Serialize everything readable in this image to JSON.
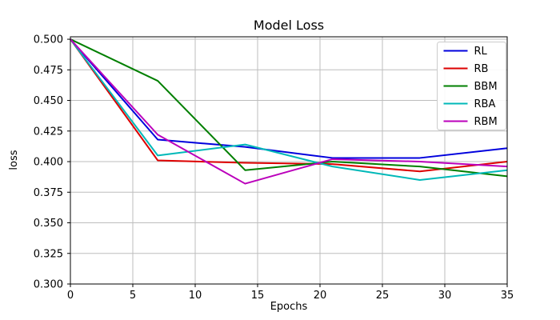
{
  "chart_data": {
    "type": "line",
    "title": "Model Loss",
    "xlabel": "Epochs",
    "ylabel": "loss",
    "x": [
      0,
      7,
      14,
      21,
      28,
      35
    ],
    "series": [
      {
        "name": "RL",
        "color": "#0000dd",
        "values": [
          0.5,
          0.418,
          0.412,
          0.403,
          0.403,
          0.411
        ]
      },
      {
        "name": "RB",
        "color": "#dd0000",
        "values": [
          0.5,
          0.401,
          0.399,
          0.398,
          0.392,
          0.4
        ]
      },
      {
        "name": "BBM",
        "color": "#007f00",
        "values": [
          0.5,
          0.466,
          0.393,
          0.4,
          0.396,
          0.388
        ]
      },
      {
        "name": "RBA",
        "color": "#00b8b8",
        "values": [
          0.5,
          0.405,
          0.414,
          0.396,
          0.385,
          0.393
        ]
      },
      {
        "name": "RBM",
        "color": "#bb00bb",
        "values": [
          0.5,
          0.422,
          0.382,
          0.402,
          0.4,
          0.396
        ]
      }
    ],
    "xlim": [
      0,
      35
    ],
    "ylim": [
      0.3,
      0.502
    ],
    "xticks": [
      0,
      5,
      10,
      15,
      20,
      25,
      30,
      35
    ],
    "xtick_labels": [
      "0",
      "5",
      "10",
      "15",
      "20",
      "25",
      "30",
      "35"
    ],
    "yticks": [
      0.3,
      0.325,
      0.35,
      0.375,
      0.4,
      0.425,
      0.45,
      0.475,
      0.5
    ],
    "ytick_labels": [
      "0.300",
      "0.325",
      "0.350",
      "0.375",
      "0.400",
      "0.425",
      "0.450",
      "0.475",
      "0.500"
    ],
    "grid": true,
    "legend_position": "upper right",
    "grid_color": "#bdbdbd",
    "spine_color": "#000000",
    "legend_border_color": "#cccccc",
    "background_color": "#ffffff"
  }
}
